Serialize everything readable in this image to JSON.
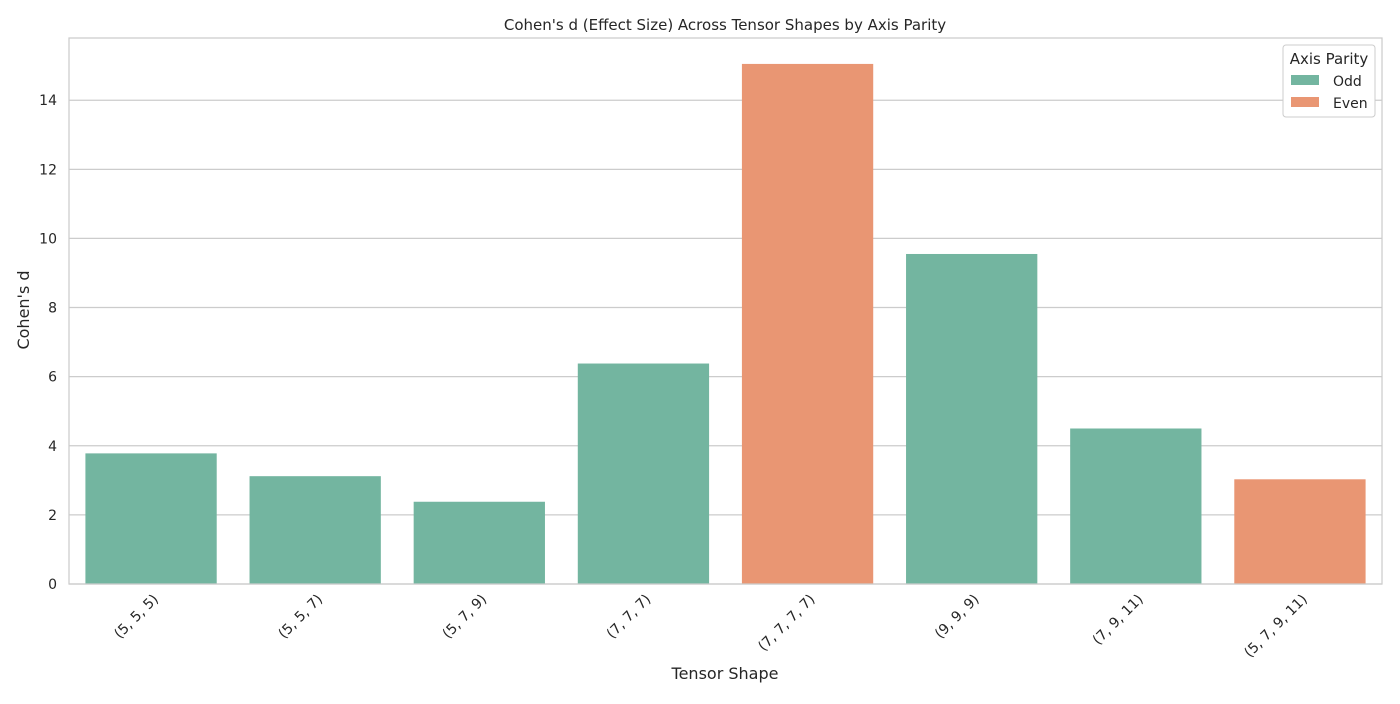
{
  "chart_data": {
    "type": "bar",
    "title": "Cohen's d (Effect Size) Across Tensor Shapes by Axis Parity",
    "xlabel": "Tensor Shape",
    "ylabel": "Cohen's d",
    "categories": [
      "(5, 5, 5)",
      "(5, 5, 7)",
      "(5, 7, 9)",
      "(7, 7, 7)",
      "(7, 7, 7, 7)",
      "(9, 9, 9)",
      "(7, 9, 11)",
      "(5, 7, 9, 11)"
    ],
    "values": [
      3.78,
      3.12,
      2.38,
      6.38,
      15.05,
      9.55,
      4.5,
      3.03
    ],
    "parity": [
      "Odd",
      "Odd",
      "Odd",
      "Odd",
      "Even",
      "Odd",
      "Odd",
      "Even"
    ],
    "ylim": [
      0,
      15.8
    ],
    "yticks": [
      0,
      2,
      4,
      6,
      8,
      10,
      12,
      14
    ],
    "grid": "horizontal",
    "legend": {
      "title": "Axis Parity",
      "placement": "top-right",
      "entries": [
        {
          "name": "Odd",
          "color": "#73b5a0"
        },
        {
          "name": "Even",
          "color": "#e99673"
        }
      ]
    }
  }
}
